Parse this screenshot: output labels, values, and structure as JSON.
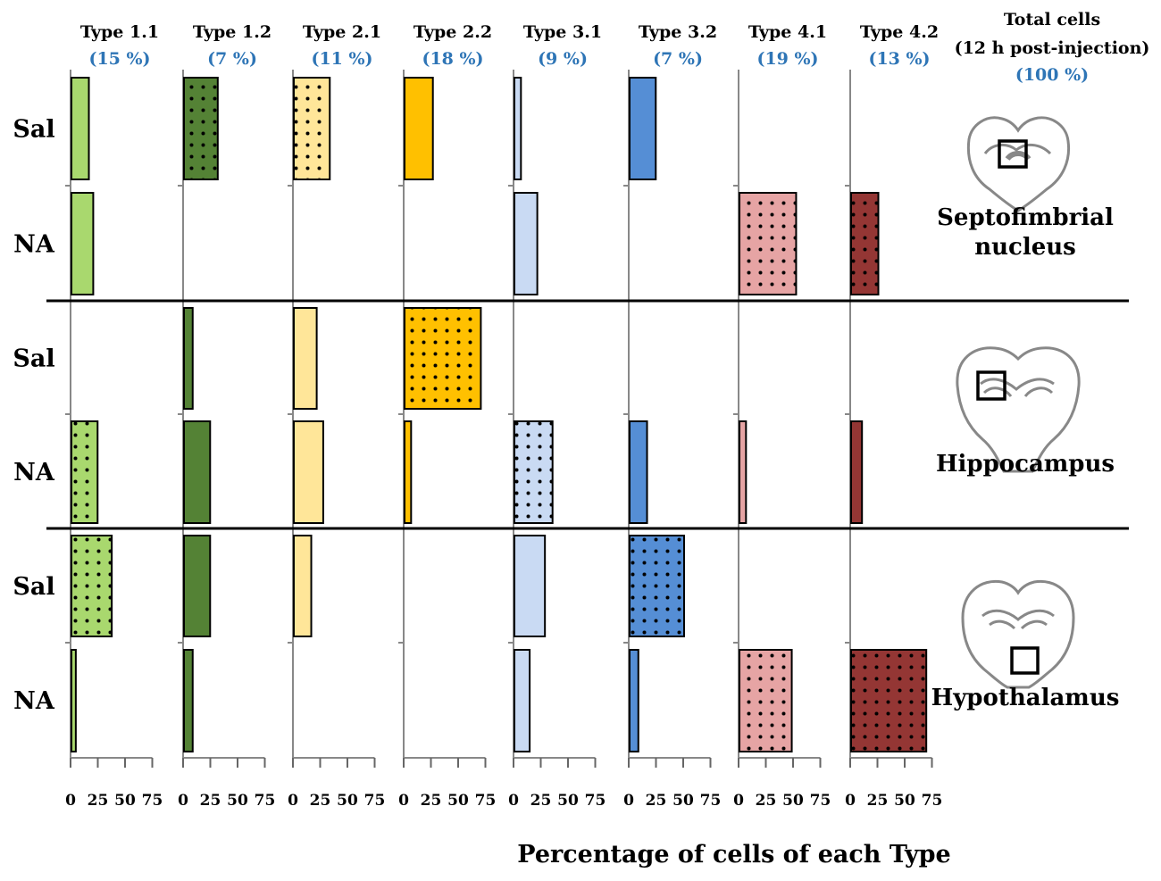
{
  "chart_data": {
    "type": "bar",
    "orientation": "horizontal",
    "xlabel": "Percentage of cells of each Type",
    "xlim": [
      0,
      75
    ],
    "ticks": [
      "0",
      "25",
      "50",
      "75"
    ],
    "tick_values": [
      0,
      25,
      50,
      75
    ],
    "colors": {
      "pct": "#2e75b6",
      "types": [
        "#a9d86e",
        "#548235",
        "#ffe699",
        "#ffc000",
        "#c9daf3",
        "#558ed5",
        "#e6a4a4",
        "#943634"
      ]
    },
    "types": [
      {
        "name": "Type 1.1",
        "pct": "(15 %)"
      },
      {
        "name": "Type 1.2",
        "pct": "(7 %)"
      },
      {
        "name": "Type 2.1",
        "pct": "(11 %)"
      },
      {
        "name": "Type 2.2",
        "pct": "(18 %)"
      },
      {
        "name": "Type 3.1",
        "pct": "(9 %)"
      },
      {
        "name": "Type 3.2",
        "pct": "(7 %)"
      },
      {
        "name": "Type 4.1",
        "pct": "(19 %)"
      },
      {
        "name": "Type 4.2",
        "pct": "(13 %)"
      }
    ],
    "total_header": {
      "line1": "Total cells",
      "line2": "(12 h post-injection)",
      "pct": "(100 %)"
    },
    "regions": [
      {
        "name_lines": [
          "Septofimbrial",
          "nucleus"
        ],
        "rows": [
          {
            "label": "Sal",
            "values": [
              16,
              31,
              33,
              26,
              6,
              24,
              0,
              0
            ],
            "dotted": [
              false,
              true,
              true,
              false,
              false,
              false,
              false,
              false
            ]
          },
          {
            "label": "NA",
            "values": [
              20,
              0,
              0,
              0,
              21,
              0,
              52,
              25
            ],
            "dotted": [
              false,
              false,
              false,
              false,
              false,
              false,
              true,
              true
            ]
          }
        ]
      },
      {
        "name_lines": [
          "Hippocampus"
        ],
        "rows": [
          {
            "label": "Sal",
            "values": [
              0,
              8,
              21,
              70,
              0,
              0,
              0,
              0
            ],
            "dotted": [
              false,
              false,
              false,
              true,
              false,
              false,
              false,
              false
            ]
          },
          {
            "label": "NA",
            "values": [
              24,
              24,
              27,
              6,
              35,
              16,
              6,
              10
            ],
            "dotted": [
              true,
              false,
              false,
              false,
              true,
              false,
              false,
              false
            ]
          }
        ]
      },
      {
        "name_lines": [
          "Hypothalamus"
        ],
        "rows": [
          {
            "label": "Sal",
            "values": [
              37,
              24,
              16,
              0,
              28,
              50,
              0,
              0
            ],
            "dotted": [
              true,
              false,
              false,
              false,
              false,
              true,
              false,
              false
            ]
          },
          {
            "label": "NA",
            "values": [
              4,
              8,
              0,
              0,
              14,
              8,
              48,
              69
            ],
            "dotted": [
              false,
              false,
              false,
              false,
              false,
              false,
              true,
              true
            ]
          }
        ]
      }
    ]
  }
}
